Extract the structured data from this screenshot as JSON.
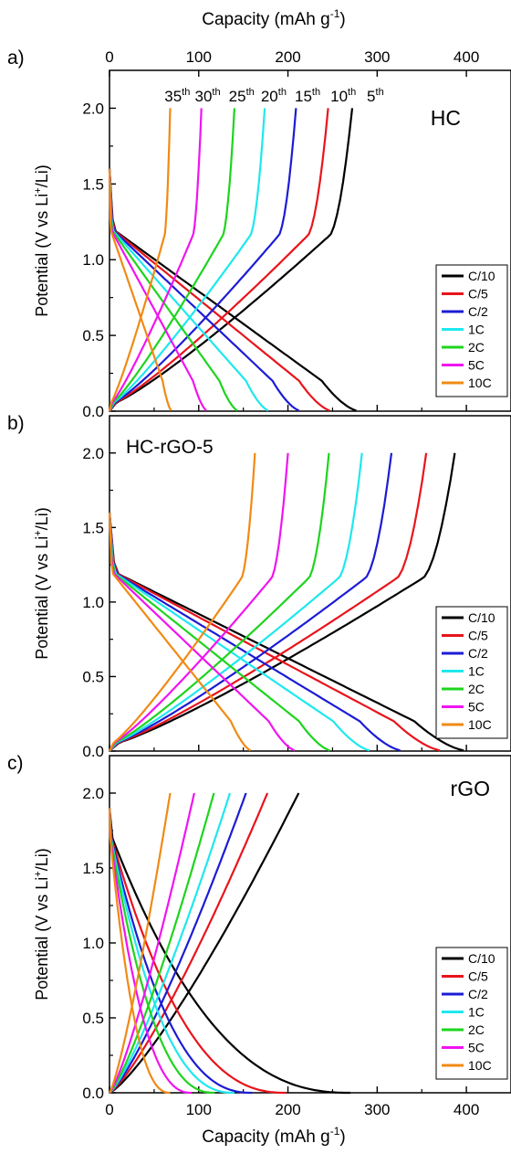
{
  "figure": {
    "top_axis_label": "Capacity (mAh g",
    "bottom_axis_label": "Capacity (mAh g",
    "axis_label_sup": "-1",
    "axis_label_close": ")",
    "y_label_main": "Potential (V vs Li",
    "y_label_sup": "+",
    "y_label_tail": "/Li)"
  },
  "colors": {
    "C/10": "#000000",
    "C/5": "#e8141c",
    "C/2": "#1c1cd4",
    "1C": "#1ee8ee",
    "2C": "#1ed41e",
    "5C": "#f014f0",
    "10C": "#f08a14"
  },
  "chart_data": [
    {
      "type": "line",
      "panel_label": "a)",
      "title": "HC",
      "xlabel": "Capacity (mAh g-1)",
      "ylabel": "Potential (V vs Li+/Li)",
      "xlim": [
        0,
        450
      ],
      "ylim": [
        0,
        2.25
      ],
      "x_ticks": [
        0,
        100,
        200,
        300,
        400
      ],
      "y_ticks": [
        0.0,
        0.5,
        1.0,
        1.5,
        2.0
      ],
      "y_tick_labels": [
        "0.0",
        "0.5",
        "1.0",
        "1.5",
        "2.0"
      ],
      "legend_position": "right",
      "cycle_labels": [
        {
          "base": "35",
          "sup": "th",
          "x": 76
        },
        {
          "base": "30",
          "sup": "th",
          "x": 110
        },
        {
          "base": "25",
          "sup": "th",
          "x": 148
        },
        {
          "base": "20",
          "sup": "th",
          "x": 184
        },
        {
          "base": "15",
          "sup": "th",
          "x": 222
        },
        {
          "base": "10",
          "sup": "th",
          "x": 262
        },
        {
          "base": "5",
          "sup": "th",
          "x": 298
        }
      ],
      "series": [
        {
          "name": "C/10",
          "discharge_end": 280,
          "charge_end": 272,
          "curve": "hc"
        },
        {
          "name": "C/5",
          "discharge_end": 250,
          "charge_end": 245,
          "curve": "hc"
        },
        {
          "name": "C/2",
          "discharge_end": 215,
          "charge_end": 209,
          "curve": "hc"
        },
        {
          "name": "1C",
          "discharge_end": 180,
          "charge_end": 174,
          "curve": "hc"
        },
        {
          "name": "2C",
          "discharge_end": 145,
          "charge_end": 140,
          "curve": "hc"
        },
        {
          "name": "5C",
          "discharge_end": 110,
          "charge_end": 103,
          "curve": "hc"
        },
        {
          "name": "10C",
          "discharge_end": 70,
          "charge_end": 68,
          "curve": "hc"
        }
      ]
    },
    {
      "type": "line",
      "panel_label": "b)",
      "title": "HC-rGO-5",
      "xlabel": "Capacity (mAh g-1)",
      "ylabel": "Potential (V vs Li+/Li)",
      "xlim": [
        0,
        450
      ],
      "ylim": [
        0,
        2.25
      ],
      "x_ticks": [
        0,
        100,
        200,
        300,
        400
      ],
      "y_ticks": [
        0.0,
        0.5,
        1.0,
        1.5,
        2.0
      ],
      "y_tick_labels": [
        "0.0",
        "0.5",
        "1.0",
        "1.5",
        "2.0"
      ],
      "legend_position": "right",
      "series": [
        {
          "name": "C/10",
          "discharge_end": 402,
          "charge_end": 387,
          "curve": "hc"
        },
        {
          "name": "C/5",
          "discharge_end": 375,
          "charge_end": 355,
          "curve": "hc"
        },
        {
          "name": "C/2",
          "discharge_end": 330,
          "charge_end": 316,
          "curve": "hc"
        },
        {
          "name": "1C",
          "discharge_end": 295,
          "charge_end": 283,
          "curve": "hc"
        },
        {
          "name": "2C",
          "discharge_end": 250,
          "charge_end": 246,
          "curve": "hc"
        },
        {
          "name": "5C",
          "discharge_end": 210,
          "charge_end": 200,
          "curve": "hc"
        },
        {
          "name": "10C",
          "discharge_end": 160,
          "charge_end": 163,
          "curve": "hc"
        }
      ]
    },
    {
      "type": "line",
      "panel_label": "c)",
      "title": "rGO",
      "xlabel": "Capacity (mAh g-1)",
      "ylabel": "Potential (V vs Li+/Li)",
      "xlim": [
        0,
        450
      ],
      "ylim": [
        0,
        2.25
      ],
      "x_ticks": [
        0,
        100,
        200,
        300,
        400
      ],
      "y_ticks": [
        0.0,
        0.5,
        1.0,
        1.5,
        2.0
      ],
      "y_tick_labels": [
        "0.0",
        "0.5",
        "1.0",
        "1.5",
        "2.0"
      ],
      "legend_position": "bottom-right",
      "series": [
        {
          "name": "C/10",
          "discharge_end": 270,
          "charge_end": 212,
          "curve": "rgo"
        },
        {
          "name": "C/5",
          "discharge_end": 198,
          "charge_end": 177,
          "curve": "rgo"
        },
        {
          "name": "C/2",
          "discharge_end": 160,
          "charge_end": 153,
          "curve": "rgo"
        },
        {
          "name": "1C",
          "discharge_end": 140,
          "charge_end": 135,
          "curve": "rgo"
        },
        {
          "name": "2C",
          "discharge_end": 118,
          "charge_end": 117,
          "curve": "rgo"
        },
        {
          "name": "5C",
          "discharge_end": 92,
          "charge_end": 95,
          "curve": "rgo"
        },
        {
          "name": "10C",
          "discharge_end": 68,
          "charge_end": 68,
          "curve": "rgo"
        }
      ]
    }
  ],
  "x_tick_labels": [
    "0",
    "100",
    "200",
    "300",
    "400"
  ]
}
